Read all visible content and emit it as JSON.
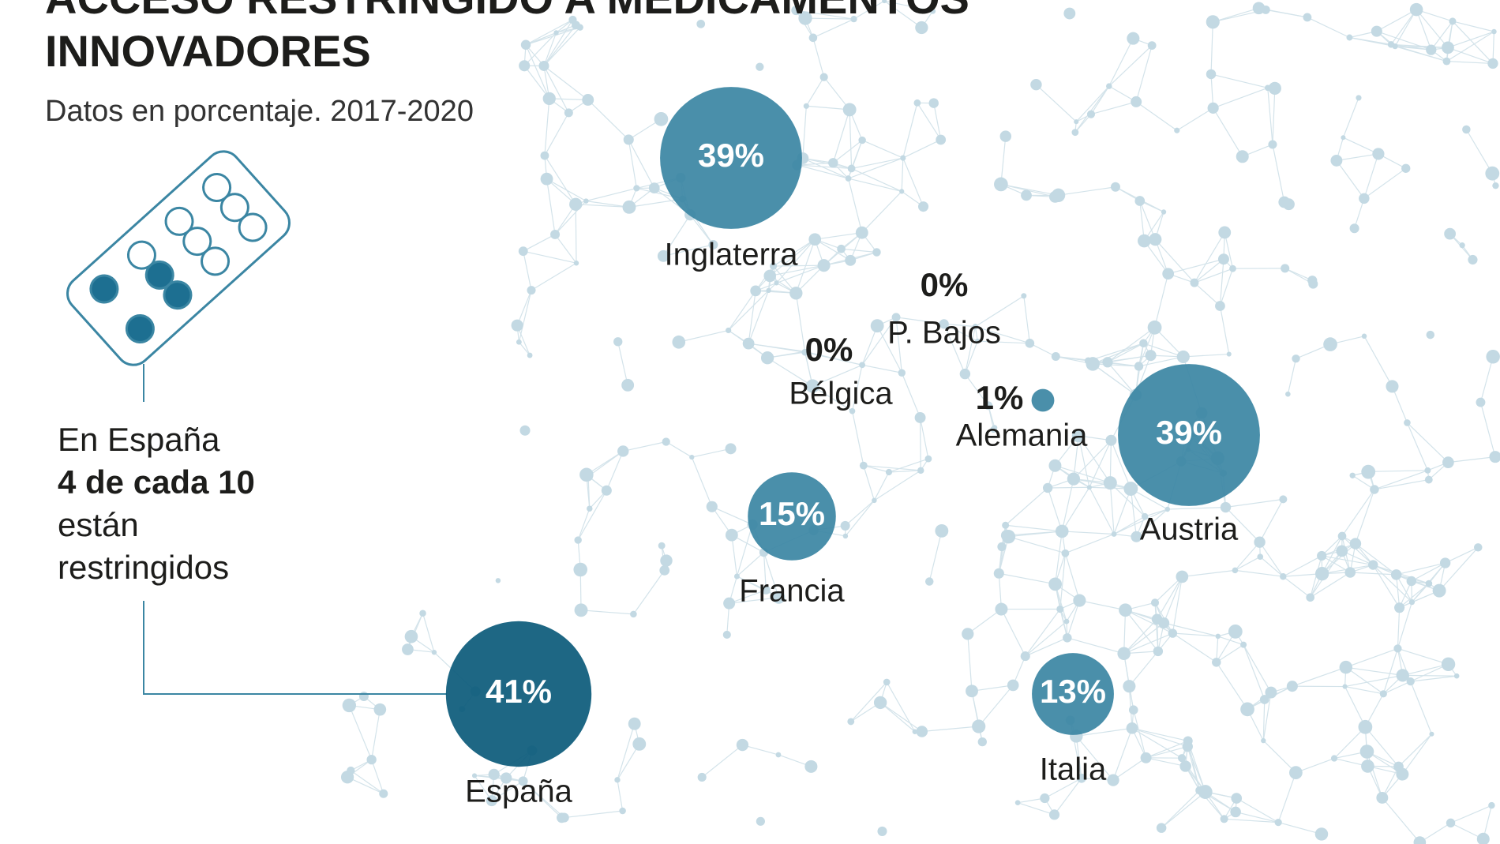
{
  "title_lines": [
    "ACCESO RESTRINGIDO A MEDICAMENTOS",
    "INNOVADORES"
  ],
  "subtitle": "Datos en porcentaje. 2017-2020",
  "note_lines": [
    "En España",
    "4 de cada 10",
    "están",
    "restringidos"
  ],
  "regions": [
    {
      "name": "Inglaterra",
      "value": 39,
      "value_label": "39%",
      "color": "#3b86a3"
    },
    {
      "name": "P. Bajos",
      "value": 0,
      "value_label": "0%",
      "color": "#3b86a3"
    },
    {
      "name": "Bélgica",
      "value": 0,
      "value_label": "0%",
      "color": "#3b86a3"
    },
    {
      "name": "Alemania",
      "value": 1,
      "value_label": "1%",
      "color": "#3b86a3"
    },
    {
      "name": "Austria",
      "value": 39,
      "value_label": "39%",
      "color": "#3b86a3"
    },
    {
      "name": "Francia",
      "value": 15,
      "value_label": "15%",
      "color": "#3b86a3"
    },
    {
      "name": "España",
      "value": 41,
      "value_label": "41%",
      "color": "#0b5a7a"
    },
    {
      "name": "Italia",
      "value": 13,
      "value_label": "13%",
      "color": "#3b86a3"
    }
  ]
}
